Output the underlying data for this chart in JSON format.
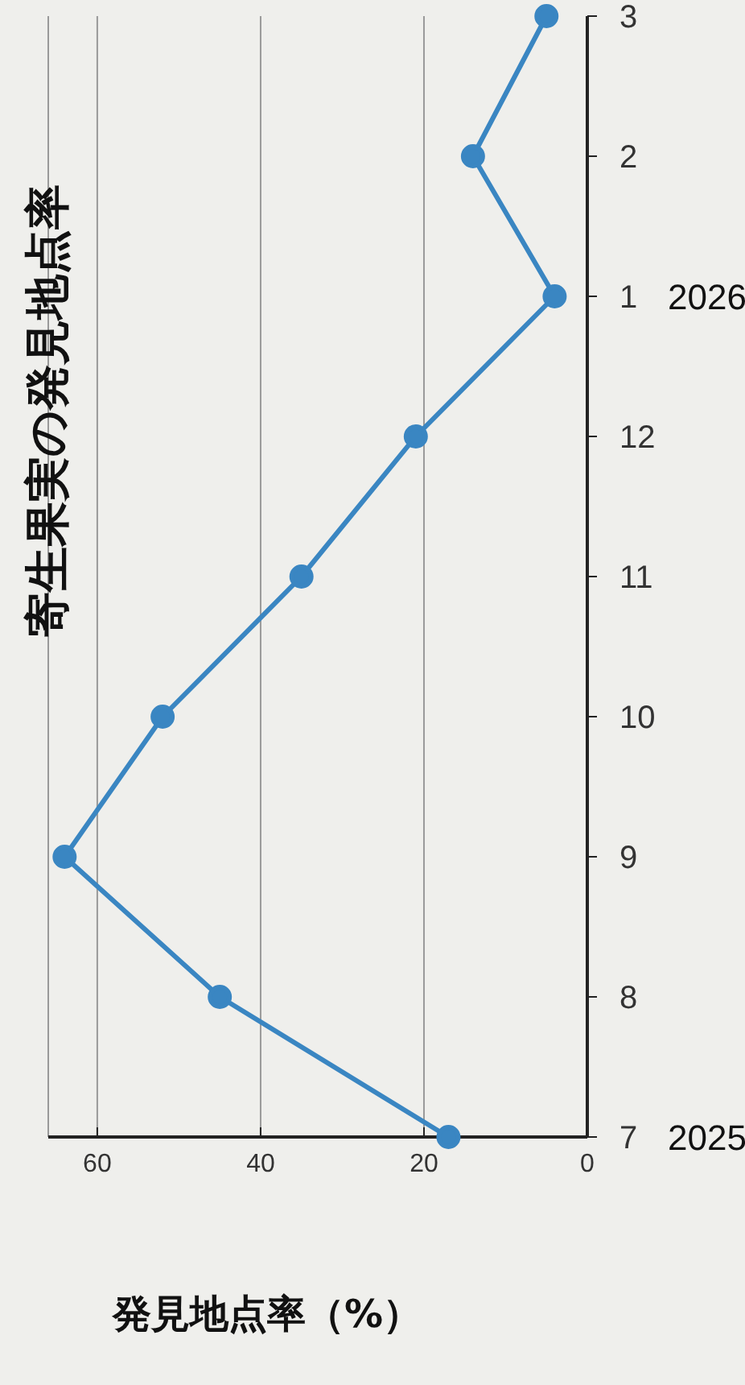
{
  "chart_data": {
    "type": "line",
    "orientation": "horizontal",
    "title": "寄生果実の発見地点率",
    "xlabel": "発見地点率（%）",
    "categories": [
      "3",
      "2",
      "1",
      "12",
      "11",
      "10",
      "9",
      "8",
      "7"
    ],
    "series": [
      {
        "color": "#3a86c2",
        "values": [
          5,
          14,
          4,
          21,
          35,
          52,
          64,
          45,
          17
        ]
      }
    ],
    "xlim": [
      66,
      0
    ],
    "xticks": [
      60,
      40,
      20,
      0
    ],
    "grid": "x",
    "marker": "circle",
    "line_style": "solid",
    "annotations": [
      "2026",
      "2025"
    ]
  }
}
